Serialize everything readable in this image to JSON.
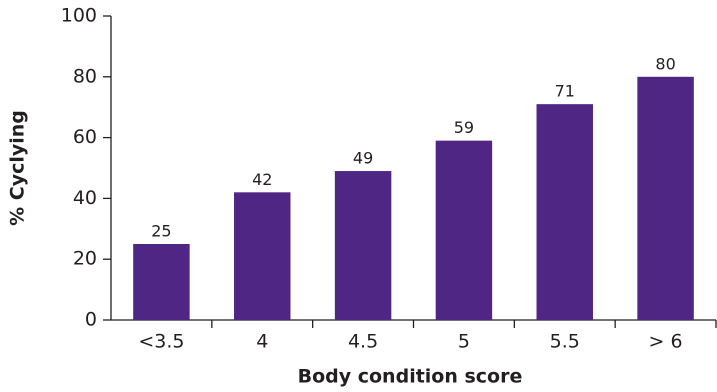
{
  "chart_data": {
    "type": "bar",
    "x_label": "Body condition score",
    "y_label": "% Cyclying",
    "categories": [
      "<3.5",
      "4",
      "4.5",
      "5",
      "5.5",
      "> 6"
    ],
    "values": [
      25,
      42,
      49,
      59,
      71,
      80
    ],
    "color": "#4f2683",
    "ylim": [
      0,
      100
    ],
    "yticks": [
      0,
      20,
      40,
      60,
      80,
      100
    ],
    "grid": false
  }
}
